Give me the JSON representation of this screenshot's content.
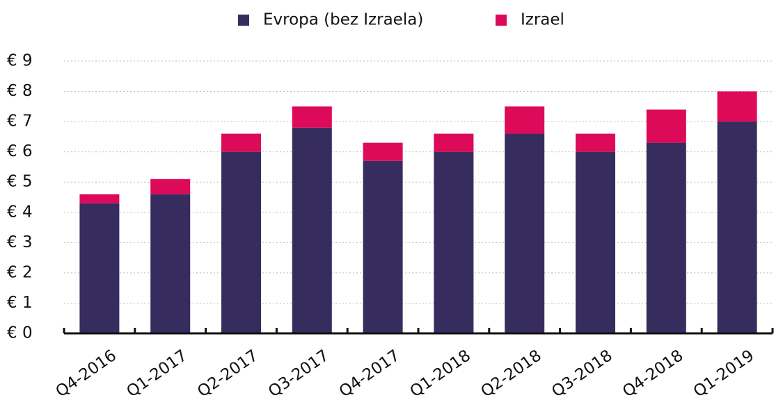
{
  "chart_data": {
    "type": "stacked_bar",
    "categories": [
      "Q4-2016",
      "Q1-2017",
      "Q2-2017",
      "Q3-2017",
      "Q4-2017",
      "Q1-2018",
      "Q2-2018",
      "Q3-2018",
      "Q4-2018",
      "Q1-2019"
    ],
    "series": [
      {
        "name": "Evropa (bez Izraela)",
        "color": "#372c5e",
        "values": [
          4.3,
          4.6,
          6.0,
          6.8,
          5.7,
          6.0,
          6.6,
          6.0,
          6.3,
          7.0
        ]
      },
      {
        "name": "Izrael",
        "color": "#dd0a5a",
        "values": [
          0.3,
          0.5,
          0.6,
          0.7,
          0.6,
          0.6,
          0.9,
          0.6,
          1.1,
          1.0
        ]
      }
    ],
    "ylim": [
      0,
      9
    ],
    "yticks": [
      {
        "value": 0,
        "label": "€ 0"
      },
      {
        "value": 1,
        "label": "€ 1"
      },
      {
        "value": 2,
        "label": "€ 2"
      },
      {
        "value": 3,
        "label": "€ 3"
      },
      {
        "value": 4,
        "label": "€ 4"
      },
      {
        "value": 5,
        "label": "€ 5"
      },
      {
        "value": 6,
        "label": "€ 6"
      },
      {
        "value": 7,
        "label": "€ 7"
      },
      {
        "value": 8,
        "label": "€ 8"
      },
      {
        "value": 9,
        "label": "€ 9"
      }
    ],
    "grid": true,
    "legend": "top"
  }
}
